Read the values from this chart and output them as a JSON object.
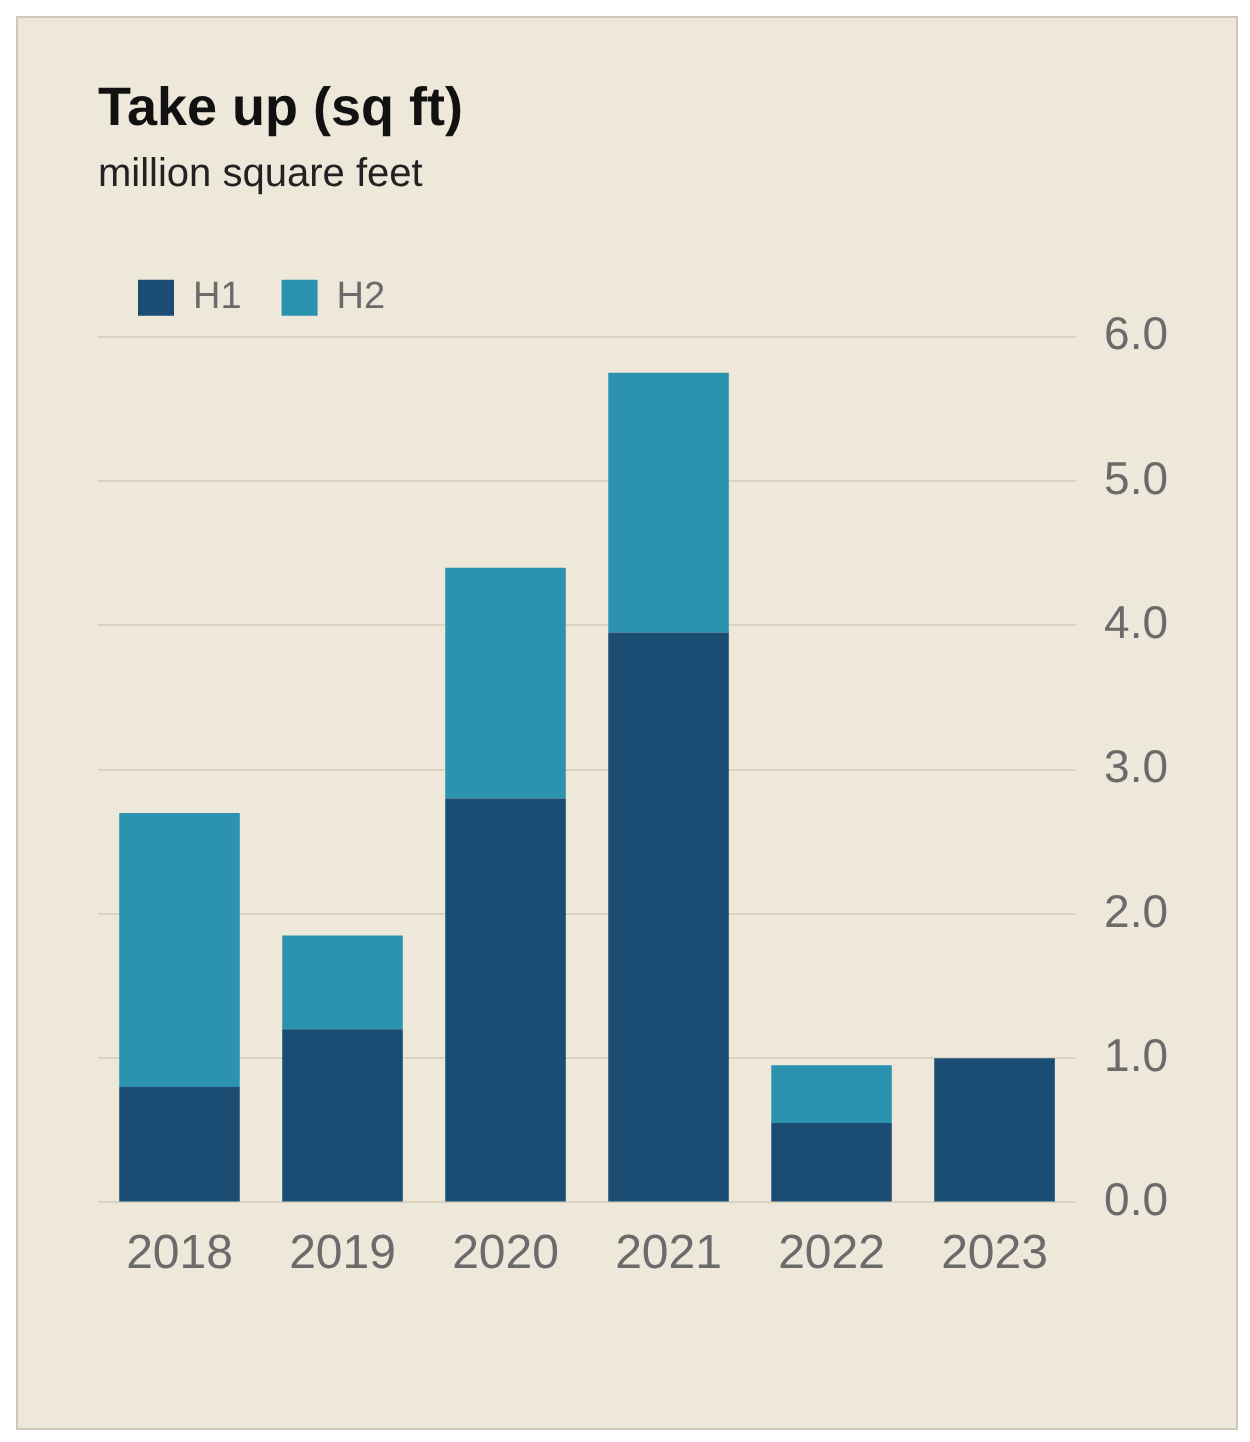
{
  "chart_data": {
    "type": "bar",
    "title": "Take up (sq ft)",
    "subtitle": "million square feet",
    "categories": [
      "2018",
      "2019",
      "2020",
      "2021",
      "2022",
      "2023"
    ],
    "series": [
      {
        "name": "H1",
        "color": "#1b4c74",
        "values": [
          0.8,
          1.2,
          2.8,
          3.95,
          0.55,
          1.0
        ]
      },
      {
        "name": "H2",
        "color": "#2b92b0",
        "values": [
          1.9,
          0.65,
          1.6,
          1.8,
          0.4,
          0
        ]
      }
    ],
    "stacked": true,
    "ylim": [
      0,
      6
    ],
    "yticks": [
      {
        "value": 0,
        "label": "0.0"
      },
      {
        "value": 1,
        "label": "1.0"
      },
      {
        "value": 2,
        "label": "2.0"
      },
      {
        "value": 3,
        "label": "3.0"
      },
      {
        "value": 4,
        "label": "4.0"
      },
      {
        "value": 5,
        "label": "5.0"
      },
      {
        "value": 6,
        "label": "6.0"
      }
    ],
    "grid": "y",
    "legend": "top left"
  }
}
